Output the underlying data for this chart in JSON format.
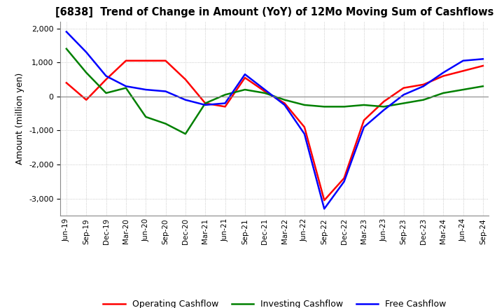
{
  "title": "[6838]  Trend of Change in Amount (YoY) of 12Mo Moving Sum of Cashflows",
  "ylabel": "Amount (million yen)",
  "background_color": "#ffffff",
  "grid_color": "#bbbbbb",
  "x_labels": [
    "Jun-19",
    "Sep-19",
    "Dec-19",
    "Mar-20",
    "Jun-20",
    "Sep-20",
    "Dec-20",
    "Mar-21",
    "Jun-21",
    "Sep-21",
    "Dec-21",
    "Mar-22",
    "Jun-22",
    "Sep-22",
    "Dec-22",
    "Mar-23",
    "Jun-23",
    "Sep-23",
    "Dec-23",
    "Mar-24",
    "Jun-24",
    "Sep-24"
  ],
  "operating_cashflow": [
    400,
    -100,
    500,
    1050,
    1050,
    1050,
    500,
    -200,
    -300,
    550,
    150,
    -200,
    -900,
    -3050,
    -2400,
    -700,
    -150,
    250,
    350,
    600,
    750,
    900
  ],
  "investing_cashflow": [
    1400,
    700,
    100,
    250,
    -600,
    -800,
    -1100,
    -200,
    50,
    200,
    100,
    -100,
    -250,
    -300,
    -300,
    -250,
    -300,
    -200,
    -100,
    100,
    200,
    300
  ],
  "free_cashflow": [
    1900,
    1300,
    600,
    300,
    200,
    150,
    -100,
    -250,
    -200,
    650,
    200,
    -250,
    -1100,
    -3300,
    -2500,
    -900,
    -400,
    50,
    300,
    700,
    1050,
    1100
  ],
  "ylim": [
    -3500,
    2200
  ],
  "yticks": [
    -3000,
    -2000,
    -1000,
    0,
    1000,
    2000
  ],
  "operating_color": "#ff0000",
  "investing_color": "#008000",
  "free_color": "#0000ff",
  "legend_labels": [
    "Operating Cashflow",
    "Investing Cashflow",
    "Free Cashflow"
  ]
}
